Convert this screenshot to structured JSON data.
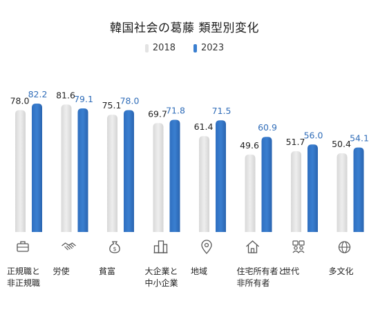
{
  "chart_data": {
    "type": "bar",
    "title": "韓国社会の葛藤 類型別変化",
    "categories": [
      [
        "正規職と",
        "非正規職"
      ],
      [
        "労使"
      ],
      [
        "貧富"
      ],
      [
        "大企業と",
        "中小企業"
      ],
      [
        "地域"
      ],
      [
        "住宅所有者と",
        "非所有者"
      ],
      [
        "世代"
      ],
      [
        "多文化"
      ]
    ],
    "series": [
      {
        "name": "2018",
        "values": [
          78.0,
          81.6,
          75.1,
          69.7,
          61.4,
          49.6,
          51.7,
          50.4
        ]
      },
      {
        "name": "2023",
        "values": [
          82.2,
          79.1,
          78.0,
          71.8,
          71.5,
          60.9,
          56.0,
          54.1
        ]
      }
    ],
    "value_labels": {
      "2018": [
        "78.0",
        "81.6",
        "75.1",
        "69.7",
        "61.4",
        "49.6",
        "51.7",
        "50.4"
      ],
      "2023": [
        "82.2",
        "79.1",
        "78.0",
        "71.8",
        "71.5",
        "60.9",
        "56.0",
        "54.1"
      ]
    },
    "icons": [
      "briefcase-icon",
      "handshake-icon",
      "money-bag-icon",
      "buildings-icon",
      "location-pin-icon",
      "house-icon",
      "generations-icon",
      "globe-icon"
    ],
    "colors": {
      "2018": "#e3e3e3",
      "2023": "#3a7fd0",
      "label2018": "#222222",
      "label2023": "#2f6cb8",
      "icon": "#555555"
    },
    "legend_placement": "top-center",
    "grid": false
  }
}
